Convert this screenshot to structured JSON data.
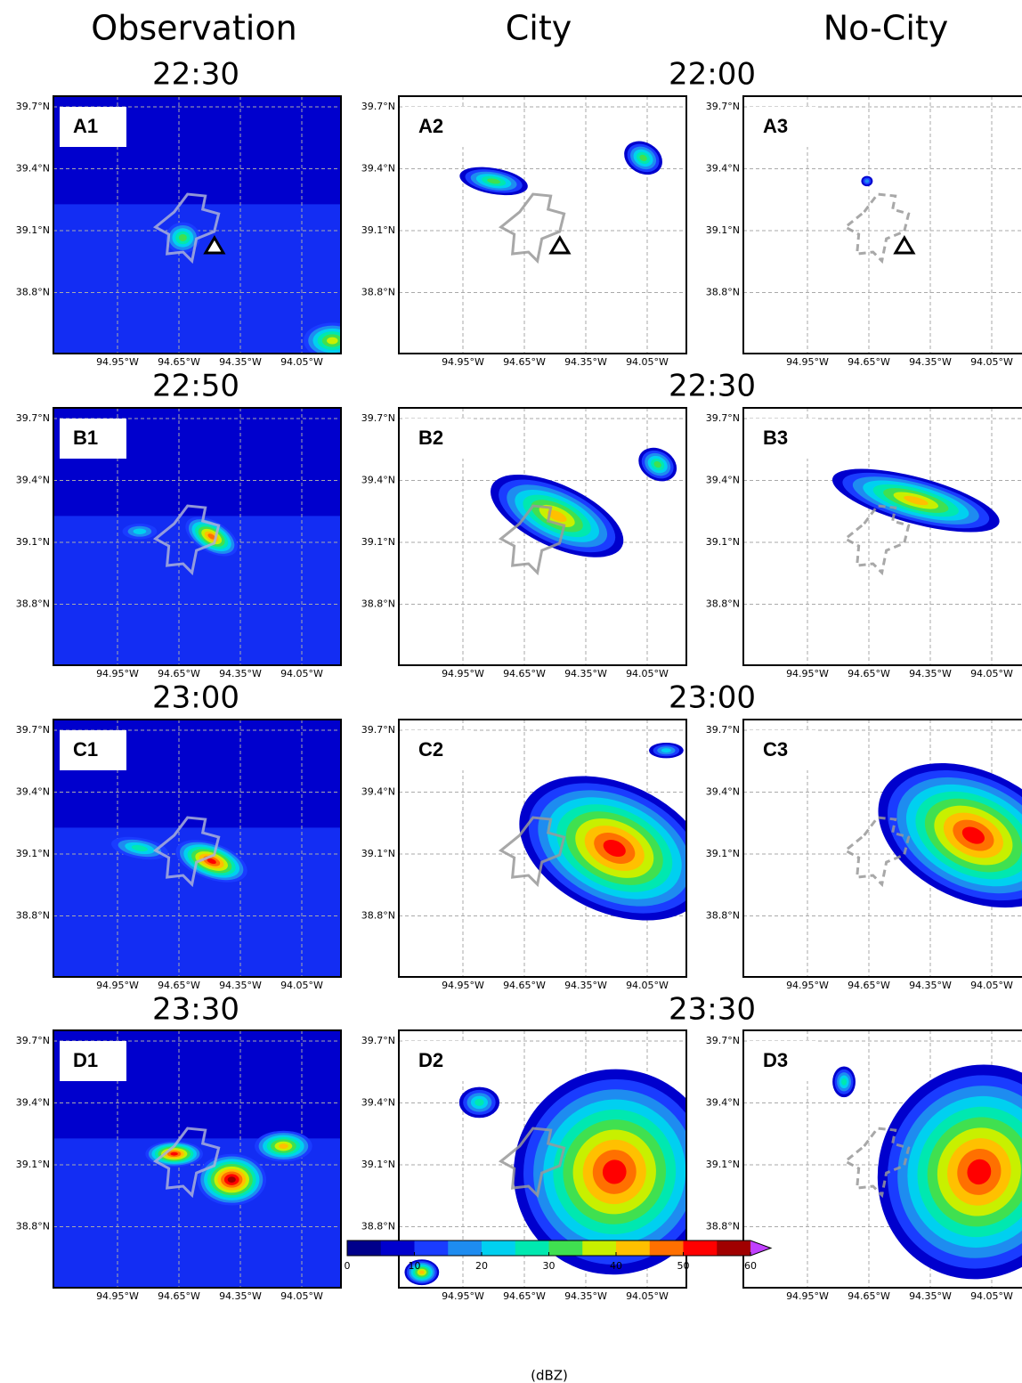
{
  "columns": [
    "Observation",
    "City",
    "No-City"
  ],
  "rows": [
    {
      "obs_time": "22:30",
      "model_time": "22:00",
      "panels": [
        "A1",
        "A2",
        "A3"
      ]
    },
    {
      "obs_time": "22:50",
      "model_time": "22:30",
      "panels": [
        "B1",
        "B2",
        "B3"
      ]
    },
    {
      "obs_time": "23:00",
      "model_time": "23:00",
      "panels": [
        "C1",
        "C2",
        "C3"
      ]
    },
    {
      "obs_time": "23:30",
      "model_time": "23:30",
      "panels": [
        "D1",
        "D2",
        "D3"
      ]
    }
  ],
  "lat_ticks": [
    "39.7°N",
    "39.4°N",
    "39.1°N",
    "38.8°N"
  ],
  "lon_ticks": [
    "94.95°W",
    "94.65°W",
    "94.35°W",
    "94.05°W"
  ],
  "colorbar": {
    "ticks": [
      0,
      10,
      20,
      30,
      40,
      50,
      60
    ],
    "unit": "(dBZ)",
    "colors": [
      "#00008b",
      "#0000cd",
      "#1a3cff",
      "#1e8cf0",
      "#00d0f0",
      "#00e8b0",
      "#40e050",
      "#c8f000",
      "#ffc000",
      "#ff7000",
      "#ff0000",
      "#a00000"
    ],
    "extend_color": "#c040ff"
  }
}
